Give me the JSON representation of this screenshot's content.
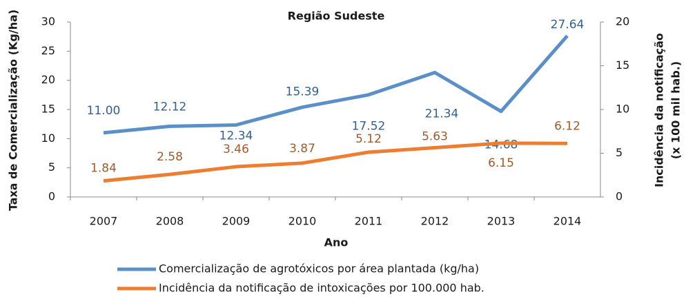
{
  "chart_data": {
    "type": "line",
    "title": "Região Sudeste",
    "xlabel": "Ano",
    "ylabel": "Taxa de Comercialização (Kg/ha)",
    "y2label": [
      "Incidência da notificação",
      "(x 100 mil hab.)"
    ],
    "categories": [
      "2007",
      "2008",
      "2009",
      "2010",
      "2011",
      "2012",
      "2013",
      "2014"
    ],
    "series": [
      {
        "name": "Comercialização de agrotóxicos por área plantada (kg/ha)",
        "color": "#5b8fc7",
        "label_color": "#2f5f96",
        "values": [
          11.0,
          12.12,
          12.34,
          15.39,
          17.52,
          21.34,
          14.68,
          27.64
        ],
        "value_labels": [
          "11.00",
          "12.12",
          "12.34",
          "15.39",
          "17.52",
          "21.34",
          "14.68",
          "27.64"
        ]
      },
      {
        "name": "Incidência da notificação de intoxicações por 100.000 hab.",
        "color": "#ed7d31",
        "label_color": "#a6582a",
        "axis": "y2",
        "values": [
          1.84,
          2.58,
          3.46,
          3.87,
          5.12,
          5.63,
          6.15,
          6.12
        ]
      }
    ],
    "ylim": [
      0,
      30
    ],
    "yticks": [
      0,
      5,
      10,
      15,
      20,
      25,
      30
    ],
    "y2lim": [
      0,
      20
    ],
    "y2ticks": [
      0,
      5,
      10,
      15,
      20
    ],
    "grid": false,
    "legend": "bottom"
  }
}
